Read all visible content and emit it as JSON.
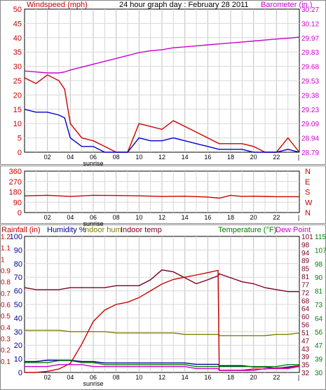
{
  "header": {
    "title": "24 hour graph day : February 28 2011",
    "wind_label": "Windspeed (mph)",
    "baro_label": "Barometer (in.)"
  },
  "colors": {
    "background": "#ffffff",
    "grid": "#d8d8d8",
    "gridMajor": "#c0c0c0",
    "wind_gust": "#cc0000",
    "wind_avg": "#0000cc",
    "barometer": "#cc00cc",
    "direction": "#cc0000",
    "rainfall": "#cc0000",
    "humidity": "#000099",
    "indoor_hum": "#808000",
    "indoor_temp": "#800020",
    "temperature": "#008000",
    "dew_point": "#cc00cc"
  },
  "chart_data": [
    {
      "type": "line",
      "panel": "wind",
      "title": "24 hour graph day : February 28 2011",
      "x_ticks": [
        "02",
        "04",
        "06",
        "08",
        "10",
        "12",
        "14",
        "16",
        "18",
        "20",
        "22"
      ],
      "x_marker": "sunrise",
      "sunrise_tick": "06",
      "ylabel_left": "Windspeed (mph)",
      "ylabel_right": "Barometer (in.)",
      "left_ticks": [
        "0",
        "5",
        "10",
        "15",
        "20",
        "25",
        "30",
        "35",
        "40",
        "45",
        "50"
      ],
      "right_ticks": [
        "28.79",
        "28.94",
        "29.09",
        "29.23",
        "29.38",
        "29.53",
        "29.68",
        "29.83",
        "29.97",
        "30.12",
        "30.27"
      ],
      "ylim_left": [
        0,
        50
      ],
      "ylim_right": [
        28.79,
        30.27
      ],
      "x_hours": [
        0,
        1,
        2,
        3,
        3.5,
        4,
        5,
        6,
        7,
        8,
        9,
        10,
        11,
        12,
        13,
        14,
        15,
        16,
        17,
        18,
        19,
        20,
        21,
        22,
        23,
        24
      ],
      "series": [
        {
          "name": "Windspeed gust",
          "color": "wind_gust",
          "values": [
            26,
            24,
            27,
            25,
            22,
            10,
            5,
            4,
            2,
            0,
            0,
            10,
            9,
            8,
            11,
            9,
            7,
            5,
            3,
            3,
            3,
            2,
            0,
            0,
            5,
            0
          ]
        },
        {
          "name": "Windspeed average",
          "color": "wind_avg",
          "values": [
            15,
            14,
            14,
            13,
            12,
            5,
            2,
            2,
            0,
            0,
            0,
            5,
            4,
            4,
            5,
            4,
            3,
            2,
            1,
            1,
            1,
            0,
            0,
            0,
            1,
            0
          ]
        },
        {
          "name": "Barometer",
          "color": "barometer",
          "values": [
            29.63,
            29.62,
            29.61,
            29.61,
            29.62,
            29.64,
            29.67,
            29.7,
            29.73,
            29.76,
            29.79,
            29.82,
            29.84,
            29.85,
            29.87,
            29.88,
            29.89,
            29.9,
            29.91,
            29.92,
            29.93,
            29.94,
            29.95,
            29.96,
            29.97,
            29.98
          ]
        }
      ]
    },
    {
      "type": "line",
      "panel": "direction",
      "x_ticks": [
        "02",
        "04",
        "06",
        "08",
        "10",
        "12",
        "14",
        "16",
        "18",
        "20",
        "22"
      ],
      "x_marker": "sunrise",
      "left_ticks": [
        "0",
        "90",
        "180",
        "270",
        "360"
      ],
      "right_ticks": [
        "N",
        "W",
        "S",
        "E",
        "N"
      ],
      "ylim": [
        0,
        360
      ],
      "x_hours": [
        0,
        2,
        4,
        6,
        8,
        10,
        12,
        14,
        16,
        17,
        18,
        19,
        20,
        22,
        24
      ],
      "series": [
        {
          "name": "Wind direction",
          "color": "direction",
          "values": [
            145,
            150,
            140,
            150,
            148,
            145,
            140,
            142,
            135,
            125,
            150,
            140,
            142,
            138,
            138
          ]
        }
      ]
    },
    {
      "type": "line",
      "panel": "temperature",
      "labels": {
        "rainfall": "Rainfall (in)",
        "humidity": "Humidity %",
        "indoor_hum": "Indoor hum",
        "indoor_temp": "Indoor temp",
        "temperature": "Temperature (°F)",
        "dew_point": "Dew Point"
      },
      "x_ticks": [
        "02",
        "04",
        "06",
        "08",
        "10",
        "12",
        "14",
        "16",
        "18",
        "20",
        "22"
      ],
      "x_marker": "sunrise",
      "ticks_rain": [
        "0",
        "0.1",
        "0.2",
        "0.3",
        "0.4",
        "0.5",
        "0.6",
        "0.7",
        "0.8",
        "0.9",
        "1",
        "1.1",
        "1.2"
      ],
      "ticks_hum": [
        "0",
        "10",
        "20",
        "30",
        "40",
        "50",
        "60",
        "70",
        "80",
        "90",
        "100"
      ],
      "ticks_temp_a": [
        "32",
        "35",
        "39",
        "43",
        "47",
        "51",
        "56",
        "60",
        "64",
        "68",
        "72",
        "77",
        "81",
        "85",
        "89",
        "94",
        "98",
        "101"
      ],
      "ticks_temp_b": [
        "30",
        "39",
        "47",
        "56",
        "64",
        "73",
        "81",
        "90",
        "98",
        "107",
        "115"
      ],
      "ylim_hum": [
        0,
        100
      ],
      "ylim_temp": [
        32,
        101
      ],
      "x_hours": [
        0,
        1,
        2,
        3,
        4,
        5,
        6,
        7,
        8,
        9,
        10,
        11,
        12,
        13,
        14,
        15,
        16,
        16.9,
        17,
        18,
        19,
        20,
        21,
        22,
        23,
        24
      ],
      "series": [
        {
          "name": "Humidity %",
          "color": "humidity",
          "axis": "hum",
          "values": [
            8,
            8,
            9,
            9,
            9,
            8,
            8,
            7,
            7,
            7,
            7,
            7,
            7,
            7,
            7,
            6,
            6,
            6,
            5,
            5,
            5,
            4,
            4,
            3,
            4,
            5
          ]
        },
        {
          "name": "Indoor hum",
          "color": "indoor_hum",
          "axis": "hum",
          "values": [
            31,
            31,
            31,
            31,
            30,
            30,
            30,
            30,
            29,
            29,
            29,
            29,
            29,
            29,
            28,
            28,
            28,
            28,
            27,
            27,
            27,
            27,
            27,
            28,
            28,
            29
          ]
        },
        {
          "name": "Indoor temp",
          "color": "indoor_temp",
          "axis": "temp",
          "values": [
            75,
            74,
            74,
            74,
            75,
            75,
            75,
            75,
            76,
            76,
            76,
            79,
            84,
            83,
            80,
            77,
            79,
            81,
            82,
            80,
            78,
            77,
            75,
            74,
            73,
            73
          ]
        },
        {
          "name": "Rainfall (in)",
          "color": "rainfall",
          "axis": "rain",
          "values": [
            0,
            0,
            0.01,
            0.03,
            0.08,
            0.25,
            0.45,
            0.55,
            0.6,
            0.62,
            0.66,
            0.72,
            0.78,
            0.82,
            0.84,
            0.86,
            0.88,
            0.9,
            0.02,
            0.02,
            0.02,
            0.03,
            0.03,
            0.04,
            0.04,
            0.06
          ]
        },
        {
          "name": "Temperature (°F)",
          "color": "temperature",
          "axis": "temp",
          "values": [
            37,
            37,
            37,
            38,
            38,
            37,
            37,
            36,
            36,
            36,
            36,
            36,
            36,
            36,
            36,
            35,
            35,
            35,
            35,
            35,
            35,
            35,
            35,
            35,
            36,
            36
          ]
        },
        {
          "name": "Dew Point",
          "color": "dew_point",
          "axis": "temp",
          "values": [
            35,
            35,
            35,
            36,
            36,
            36,
            35,
            35,
            35,
            35,
            35,
            35,
            35,
            35,
            35,
            34,
            34,
            34,
            33,
            33,
            33,
            33,
            34,
            34,
            34,
            35
          ]
        }
      ]
    }
  ]
}
